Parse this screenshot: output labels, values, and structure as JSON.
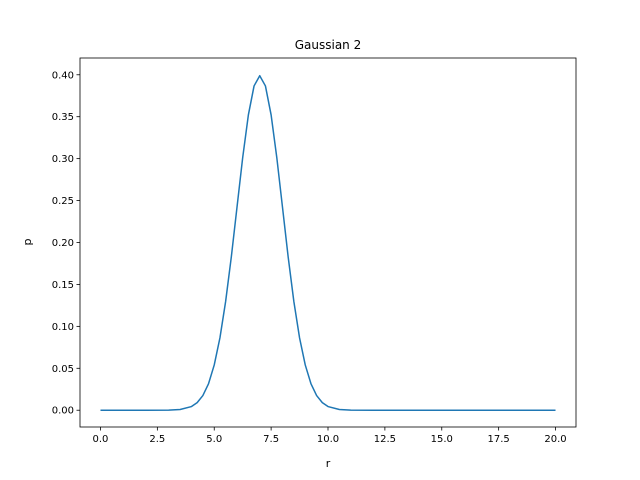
{
  "chart_data": {
    "type": "line",
    "title": "Gaussian 2",
    "xlabel": "r",
    "ylabel": "p",
    "xlim": [
      -0.9,
      20.9
    ],
    "ylim": [
      -0.02,
      0.42
    ],
    "grid": false,
    "x_ticks": [
      0.0,
      2.5,
      5.0,
      7.5,
      10.0,
      12.5,
      15.0,
      17.5,
      20.0
    ],
    "x_tick_labels": [
      "0.0",
      "2.5",
      "5.0",
      "7.5",
      "10.0",
      "12.5",
      "15.0",
      "17.5",
      "20.0"
    ],
    "y_ticks": [
      0.0,
      0.05,
      0.1,
      0.15,
      0.2,
      0.25,
      0.3,
      0.35,
      0.4
    ],
    "y_tick_labels": [
      "0.00",
      "0.05",
      "0.10",
      "0.15",
      "0.20",
      "0.25",
      "0.30",
      "0.35",
      "0.40"
    ],
    "series": [
      {
        "color": "#1f77b4",
        "x": [
          0.0,
          1.0,
          2.0,
          3.0,
          3.5,
          4.0,
          4.25,
          4.5,
          4.75,
          5.0,
          5.25,
          5.5,
          5.75,
          6.0,
          6.25,
          6.5,
          6.75,
          7.0,
          7.25,
          7.5,
          7.75,
          8.0,
          8.25,
          8.5,
          8.75,
          9.0,
          9.25,
          9.5,
          9.75,
          10.0,
          10.5,
          11.0,
          12.0,
          13.0,
          15.0,
          17.5,
          20.0
        ],
        "y": [
          0.0,
          0.0,
          0.0,
          0.0001,
          0.0009,
          0.0044,
          0.0091,
          0.0175,
          0.0317,
          0.054,
          0.0863,
          0.1295,
          0.1826,
          0.242,
          0.3011,
          0.3521,
          0.3867,
          0.3989,
          0.3867,
          0.3521,
          0.3011,
          0.242,
          0.1826,
          0.1295,
          0.0863,
          0.054,
          0.0317,
          0.0175,
          0.0091,
          0.0044,
          0.0009,
          0.0001,
          0.0,
          0.0,
          0.0,
          0.0,
          0.0
        ]
      }
    ]
  }
}
